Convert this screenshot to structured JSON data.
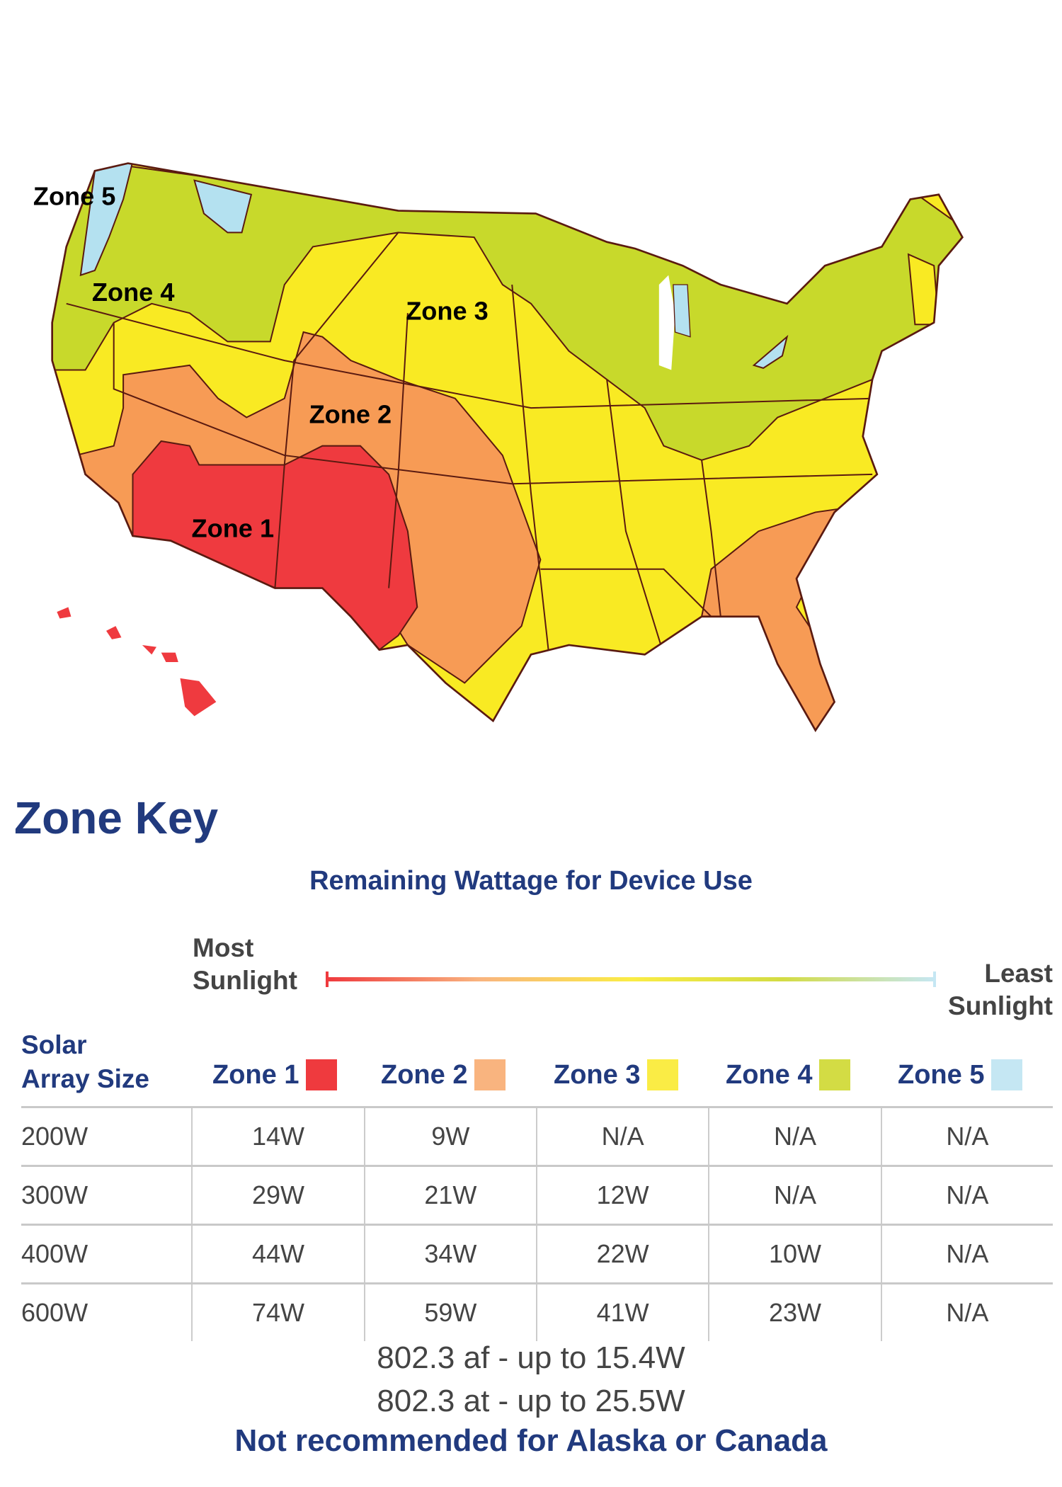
{
  "map": {
    "labels": [
      "Zone 5",
      "Zone 4",
      "Zone 3",
      "Zone 2",
      "Zone 1"
    ],
    "colors": {
      "zone1": "#ef3a3f",
      "zone2": "#f79b55",
      "zone3": "#f9ea23",
      "zone4": "#c8d92b",
      "zone5": "#b4e1f0"
    }
  },
  "key": {
    "title": "Zone Key",
    "subtitle": "Remaining Wattage for Device Use",
    "most": [
      "Most",
      "Sunlight"
    ],
    "least": [
      "Least",
      "Sunlight"
    ]
  },
  "table": {
    "header_first": [
      "Solar",
      "Array Size"
    ],
    "zones": [
      {
        "label": "Zone 1",
        "color": "#ef3a3e"
      },
      {
        "label": "Zone 2",
        "color": "#f9b47f"
      },
      {
        "label": "Zone 3",
        "color": "#faec45"
      },
      {
        "label": "Zone 4",
        "color": "#d3dc44"
      },
      {
        "label": "Zone 5",
        "color": "#c5e7f3"
      }
    ],
    "rows": [
      [
        "200W",
        "14W",
        "9W",
        "N/A",
        "N/A",
        "N/A"
      ],
      [
        "300W",
        "29W",
        "21W",
        "12W",
        "N/A",
        "N/A"
      ],
      [
        "400W",
        "44W",
        "34W",
        "22W",
        "10W",
        "N/A"
      ],
      [
        "600W",
        "74W",
        "59W",
        "41W",
        "23W",
        "N/A"
      ]
    ]
  },
  "footer": {
    "line1": "802.3 af - up to 15.4W",
    "line2": "802.3 at - up to 25.5W",
    "note": "Not recommended for Alaska or Canada"
  }
}
